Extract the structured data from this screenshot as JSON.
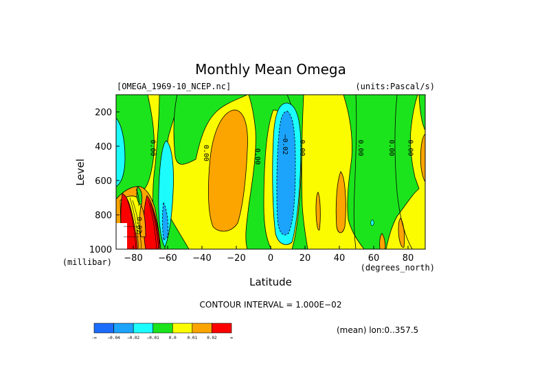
{
  "chart_data": {
    "type": "heatmap",
    "subtype": "filled-contour",
    "title": "Monthly Mean Omega",
    "file_label": "[OMEGA_1969-10_NCEP.nc]",
    "units_label": "(units:Pascal/s)",
    "xlabel": "Latitude",
    "x_unit": "(degrees_north)",
    "ylabel": "Level",
    "y_unit": "(millibar)",
    "xlim": [
      -90,
      90
    ],
    "ylim": [
      100,
      1000
    ],
    "y_inverted": true,
    "x_ticks": [
      -80,
      -60,
      -40,
      -20,
      0,
      20,
      40,
      60,
      80
    ],
    "x_tick_labels": [
      "−80",
      "−60",
      "−40",
      "−20",
      "0",
      "20",
      "40",
      "60",
      "80"
    ],
    "y_ticks": [
      200,
      400,
      600,
      800,
      1000
    ],
    "contour_interval_text": "CONTOUR INTERVAL = 1.000E−02",
    "mean_text": "(mean) lon:0..357.5",
    "contour_labels": [
      {
        "text": "0.00",
        "lat": -71,
        "lev": 410
      },
      {
        "text": "0.00",
        "lat": -40,
        "lev": 440
      },
      {
        "text": "0.00",
        "lat": -10,
        "lev": 460
      },
      {
        "text": "−0.02",
        "lat": 6,
        "lev": 390
      },
      {
        "text": "0.00",
        "lat": 16,
        "lev": 410
      },
      {
        "text": "0.00",
        "lat": 50,
        "lev": 410
      },
      {
        "text": "0.00",
        "lat": 68,
        "lev": 410
      },
      {
        "text": "0.00",
        "lat": 79,
        "lev": 410
      },
      {
        "text": "0.02",
        "lat": -79,
        "lev": 860
      }
    ],
    "colorbar": {
      "colors": [
        "#1c6cfc",
        "#1ca4fc",
        "#1cfcfc",
        "#1ce41c",
        "#fcfc00",
        "#fca400",
        "#fc0000"
      ],
      "labels": [
        "-∞",
        "−0.04",
        "−0.02",
        "−0.01",
        "0.0",
        "0.01",
        "0.02",
        "∞"
      ]
    },
    "regions": [
      {
        "level_index": 3,
        "color": "#1ce41c",
        "lat": -83,
        "lev": 300
      },
      {
        "level_index": 2,
        "color": "#1cfcfc",
        "lat": -87,
        "lev": 400
      },
      {
        "level_index": 4,
        "color": "#fcfc00",
        "lat": -73,
        "lev": 400
      },
      {
        "level_index": 2,
        "color": "#1cfcfc",
        "lat": -64,
        "lev": 600
      },
      {
        "level_index": 1,
        "color": "#1ca4fc",
        "lat": -62,
        "lev": 850
      },
      {
        "level_index": 4,
        "color": "#fcfc00",
        "lat": -34,
        "lev": 500
      },
      {
        "level_index": 5,
        "color": "#fca400",
        "lat": -25,
        "lev": 500
      },
      {
        "level_index": 2,
        "color": "#1cfcfc",
        "lat": 7,
        "lev": 500
      },
      {
        "level_index": 1,
        "color": "#1ca4fc",
        "lat": 7,
        "lev": 550
      },
      {
        "level_index": 4,
        "color": "#fcfc00",
        "lat": 30,
        "lev": 500
      },
      {
        "level_index": 5,
        "color": "#fca400",
        "lat": 40,
        "lev": 750
      },
      {
        "level_index": 3,
        "color": "#1ce41c",
        "lat": 55,
        "lev": 500
      },
      {
        "level_index": 5,
        "color": "#fca400",
        "lat": 88,
        "lev": 450
      },
      {
        "level_index": 5,
        "color": "#fca400",
        "lat": -82,
        "lev": 800
      },
      {
        "level_index": 6,
        "color": "#fc0000",
        "lat": -74,
        "lev": 850
      }
    ]
  }
}
